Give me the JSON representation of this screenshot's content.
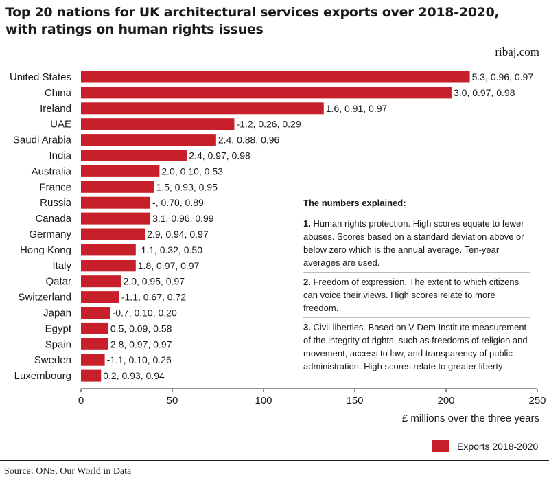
{
  "title_line1": "Top 20 nations for UK architectural services exports over 2018-2020,",
  "title_line2": "with ratings on human rights issues",
  "site": "ribaj.com",
  "source": "Source: ONS, Our World in Data",
  "colors": {
    "bar": "#c8202b",
    "text": "#1a1a1a",
    "axis": "#222222"
  },
  "notes": {
    "heading": "The numbers explained:",
    "items": [
      {
        "num": "1.",
        "text": "Human rights protection. High scores equate to fewer abuses. Scores based on a standard deviation above or below zero which is the annual average. Ten-year averages are used."
      },
      {
        "num": "2.",
        "text": "Freedom of expression. The extent to which citizens can voice their views. High scores relate to more freedom."
      },
      {
        "num": "3.",
        "text": "Civil liberties. Based on V-Dem Institute measurement of the integrity of rights, such as freedoms of religion and movement, access to law, and transparency of public administration. High scores relate to greater liberty"
      }
    ]
  },
  "chart_data": {
    "type": "bar",
    "orientation": "horizontal",
    "title": "Top 20 nations for UK architectural services exports over 2018-2020, with ratings on human rights issues",
    "xlabel": "£ millions over the three years",
    "xlim": [
      0,
      250
    ],
    "xticks": [
      0,
      50,
      100,
      150,
      200,
      250
    ],
    "legend": "Exports 2018-2020",
    "legend_position": "bottom-right",
    "categories": [
      "United States",
      "China",
      "Ireland",
      "UAE",
      "Saudi Arabia",
      "India",
      "Australia",
      "France",
      "Russia",
      "Canada",
      "Germany",
      "Hong Kong",
      "Italy",
      "Qatar",
      "Switzerland",
      "Japan",
      "Egypt",
      "Spain",
      "Sweden",
      "Luxembourg"
    ],
    "values": [
      213,
      203,
      133,
      84,
      74,
      58,
      43,
      40,
      38,
      38,
      35,
      30,
      30,
      22,
      21,
      16,
      15,
      15,
      13,
      11
    ],
    "data_labels": [
      "5.3, 0.96, 0.97",
      "3.0, 0.97, 0.98",
      "1.6, 0.91, 0.97",
      "-1.2, 0.26, 0.29",
      "2.4, 0.88, 0.96",
      "2.4, 0.97, 0.98",
      "2.0, 0.10, 0.53",
      "1.5, 0.93, 0.95",
      "-, 0.70, 0.89",
      "3.1, 0.96, 0.99",
      "2.9, 0.94, 0.97",
      "-1.1, 0.32, 0.50",
      "1.8, 0.97, 0.97",
      "2.0, 0.95, 0.97",
      "-1.1, 0.67, 0.72",
      "-0.7, 0.10, 0.20",
      "0.5, 0.09, 0.58",
      "2.8, 0.97, 0.97",
      "-1.1, 0.10, 0.26",
      "0.2, 0.93, 0.94"
    ]
  }
}
